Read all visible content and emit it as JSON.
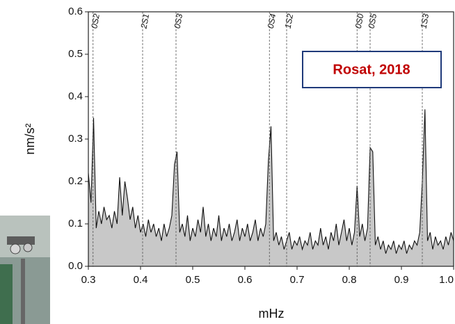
{
  "chart_data": {
    "type": "line",
    "x": [
      0.3,
      0.305,
      0.31,
      0.315,
      0.32,
      0.325,
      0.33,
      0.335,
      0.34,
      0.345,
      0.35,
      0.355,
      0.36,
      0.365,
      0.37,
      0.375,
      0.38,
      0.385,
      0.39,
      0.395,
      0.4,
      0.405,
      0.41,
      0.415,
      0.42,
      0.425,
      0.43,
      0.435,
      0.44,
      0.445,
      0.45,
      0.455,
      0.46,
      0.465,
      0.47,
      0.475,
      0.48,
      0.485,
      0.49,
      0.495,
      0.5,
      0.505,
      0.51,
      0.515,
      0.52,
      0.525,
      0.53,
      0.535,
      0.54,
      0.545,
      0.55,
      0.555,
      0.56,
      0.565,
      0.57,
      0.575,
      0.58,
      0.585,
      0.59,
      0.595,
      0.6,
      0.605,
      0.61,
      0.615,
      0.62,
      0.625,
      0.63,
      0.635,
      0.64,
      0.645,
      0.65,
      0.655,
      0.66,
      0.665,
      0.67,
      0.675,
      0.68,
      0.685,
      0.69,
      0.695,
      0.7,
      0.705,
      0.71,
      0.715,
      0.72,
      0.725,
      0.73,
      0.735,
      0.74,
      0.745,
      0.75,
      0.755,
      0.76,
      0.765,
      0.77,
      0.775,
      0.78,
      0.785,
      0.79,
      0.795,
      0.8,
      0.805,
      0.81,
      0.815,
      0.82,
      0.825,
      0.83,
      0.835,
      0.84,
      0.845,
      0.85,
      0.855,
      0.86,
      0.865,
      0.87,
      0.875,
      0.88,
      0.885,
      0.89,
      0.895,
      0.9,
      0.905,
      0.91,
      0.915,
      0.92,
      0.925,
      0.93,
      0.935,
      0.94,
      0.945,
      0.95,
      0.955,
      0.96,
      0.965,
      0.97,
      0.975,
      0.98,
      0.985,
      0.99,
      0.995,
      1.0
    ],
    "series": [
      {
        "color": "#111111",
        "fill_color": "#c8c8c8",
        "values": [
          0.22,
          0.15,
          0.35,
          0.09,
          0.13,
          0.1,
          0.14,
          0.11,
          0.12,
          0.09,
          0.13,
          0.1,
          0.21,
          0.12,
          0.2,
          0.16,
          0.11,
          0.14,
          0.09,
          0.12,
          0.08,
          0.1,
          0.07,
          0.11,
          0.08,
          0.1,
          0.07,
          0.09,
          0.06,
          0.1,
          0.07,
          0.09,
          0.12,
          0.24,
          0.27,
          0.08,
          0.1,
          0.07,
          0.12,
          0.06,
          0.09,
          0.07,
          0.11,
          0.08,
          0.14,
          0.07,
          0.1,
          0.06,
          0.09,
          0.07,
          0.12,
          0.06,
          0.09,
          0.07,
          0.1,
          0.06,
          0.08,
          0.11,
          0.06,
          0.09,
          0.07,
          0.1,
          0.06,
          0.08,
          0.11,
          0.06,
          0.09,
          0.07,
          0.1,
          0.25,
          0.33,
          0.06,
          0.08,
          0.05,
          0.07,
          0.04,
          0.06,
          0.08,
          0.04,
          0.06,
          0.05,
          0.07,
          0.04,
          0.06,
          0.05,
          0.08,
          0.04,
          0.06,
          0.05,
          0.09,
          0.05,
          0.07,
          0.04,
          0.08,
          0.06,
          0.1,
          0.05,
          0.08,
          0.11,
          0.06,
          0.09,
          0.05,
          0.08,
          0.19,
          0.07,
          0.1,
          0.06,
          0.09,
          0.28,
          0.27,
          0.05,
          0.07,
          0.04,
          0.06,
          0.03,
          0.05,
          0.04,
          0.06,
          0.03,
          0.05,
          0.04,
          0.06,
          0.03,
          0.05,
          0.04,
          0.06,
          0.05,
          0.08,
          0.2,
          0.37,
          0.06,
          0.08,
          0.04,
          0.07,
          0.05,
          0.06,
          0.04,
          0.07,
          0.05,
          0.08,
          0.06
        ]
      }
    ],
    "xlim": [
      0.3,
      1.0
    ],
    "xticks": [
      0.3,
      0.4,
      0.5,
      0.6,
      0.7,
      0.8,
      0.9,
      {
        "value": 1.0,
        "label": "1.0"
      }
    ],
    "ylim": [
      0,
      0.6
    ],
    "yticks": [
      {
        "value": 0,
        "label": "0.0"
      },
      0.1,
      0.2,
      0.3,
      0.4,
      0.5,
      0.6
    ],
    "x_label": "mHz",
    "y_label": "nm/s²",
    "modes": [
      {
        "label": "0S2",
        "x": 0.309
      },
      {
        "label": "2S1",
        "x": 0.404
      },
      {
        "label": "0S3",
        "x": 0.468
      },
      {
        "label": "0S4",
        "x": 0.647
      },
      {
        "label": "1S2",
        "x": 0.68
      },
      {
        "label": "0S0",
        "x": 0.815
      },
      {
        "label": "0S5",
        "x": 0.84
      },
      {
        "label": "1S3",
        "x": 0.94
      }
    ],
    "annotation": "Rosat, 2018"
  }
}
